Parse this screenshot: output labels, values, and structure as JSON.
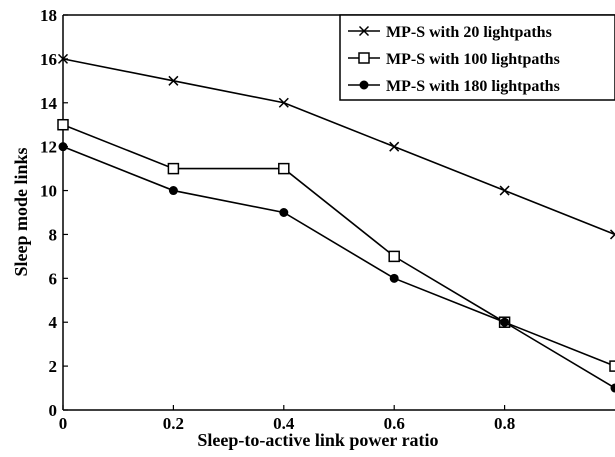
{
  "chart_data": {
    "type": "line",
    "xlabel": "Sleep-to-active link power ratio",
    "ylabel": "Sleep mode links",
    "x": [
      0,
      0.2,
      0.4,
      0.6,
      0.8,
      1.0
    ],
    "xlim": [
      0,
      1.0
    ],
    "ylim": [
      0,
      18
    ],
    "xticks": [
      "0",
      "0.2",
      "0.4",
      "0.6",
      "0.8"
    ],
    "yticks": [
      "0",
      "2",
      "4",
      "6",
      "8",
      "10",
      "12",
      "14",
      "16",
      "18"
    ],
    "grid": false,
    "legend_position": "top-right",
    "series": [
      {
        "name": "MP-S with 20 lightpaths",
        "marker": "x",
        "values": [
          16,
          15,
          14,
          12,
          10,
          8
        ]
      },
      {
        "name": "MP-S with 100 lightpaths",
        "marker": "open-square",
        "values": [
          13,
          11,
          11,
          7,
          4,
          2
        ]
      },
      {
        "name": "MP-S with 180 lightpaths",
        "marker": "filled-circle",
        "values": [
          12,
          10,
          9,
          6,
          4,
          1
        ]
      }
    ]
  }
}
